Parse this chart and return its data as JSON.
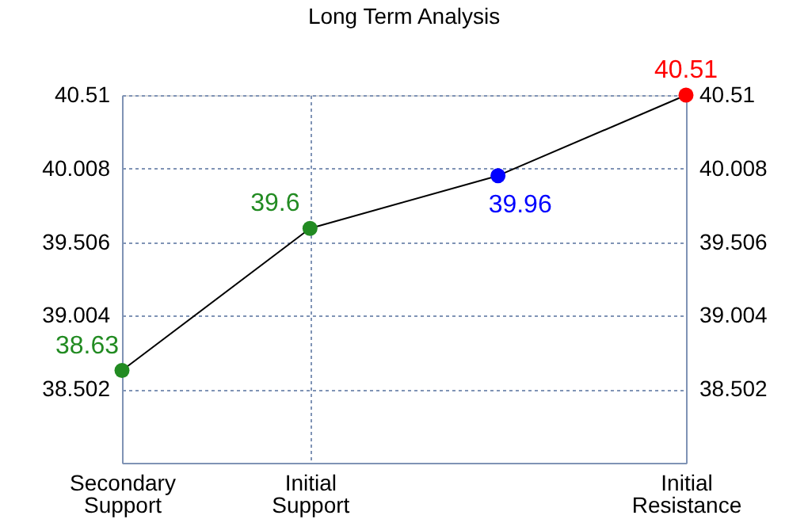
{
  "chart_data": {
    "type": "line",
    "title": "Long Term Analysis",
    "categories": [
      "Secondary Support",
      "Initial Support",
      null,
      "Initial Resistance"
    ],
    "series": [
      {
        "color": "#000000",
        "values": [
          38.63,
          39.6,
          39.96,
          40.51
        ],
        "colors": [
          "#228b22",
          "#228b22",
          "#0000ff",
          "#ff0000"
        ]
      }
    ],
    "ylim": [
      38.0,
      40.51
    ],
    "yticks": [
      38.502,
      39.004,
      39.506,
      40.008,
      40.51
    ],
    "y2lim": [
      38.0,
      40.51
    ],
    "y2ticks": [
      38.502,
      39.004,
      39.506,
      40.008,
      40.51
    ],
    "grid": true,
    "marker": "circle",
    "line_style": "solid",
    "data_labels": true
  }
}
